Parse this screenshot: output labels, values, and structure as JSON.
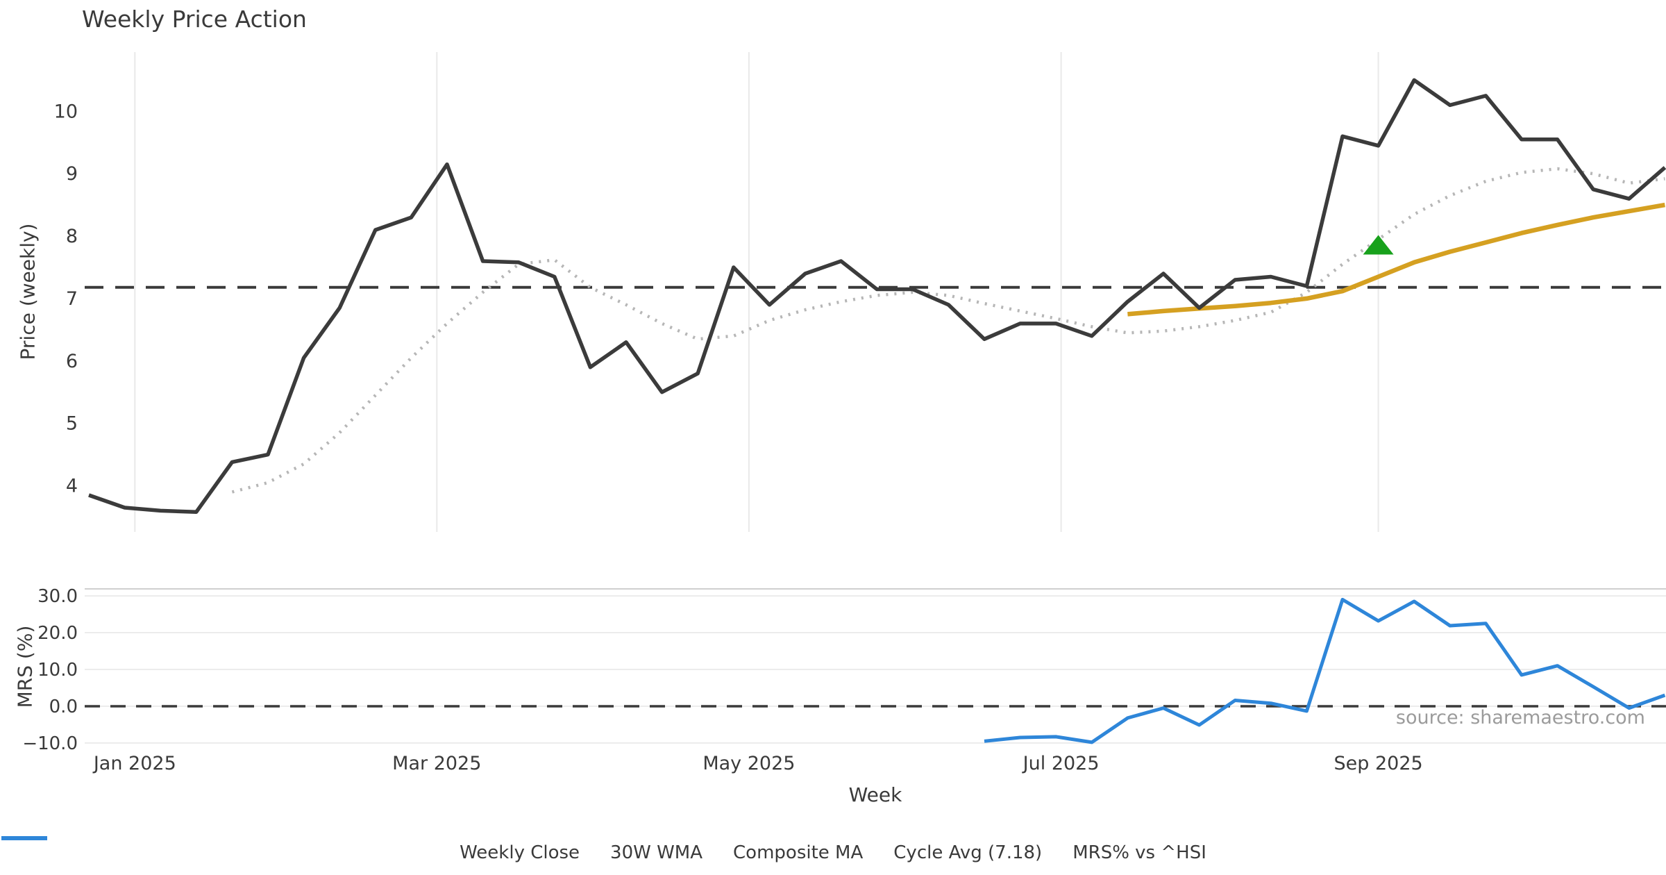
{
  "title": "Weekly Price Action",
  "source_note": "source: sharemaestro.com",
  "xlabel": "Week",
  "colors": {
    "weekly_close": "#3b3b3b",
    "wma_30w": "#d5a021",
    "composite_ma": "#b6b6b6",
    "cycle_avg": "#3a3a3a",
    "mrs": "#2e86d9",
    "signal_marker": "#18a11c",
    "grid": "#e9e9e9",
    "text": "#3a3a3a",
    "source_text": "#9b9b9b"
  },
  "legend": {
    "items": [
      {
        "label": "Weekly Close",
        "color": "#3b3b3b",
        "style": "solid"
      },
      {
        "label": "30W WMA",
        "color": "#d5a021",
        "style": "solid"
      },
      {
        "label": "Composite MA",
        "color": "#b6b6b6",
        "style": "dotted"
      },
      {
        "label": "Cycle Avg (7.18)",
        "color": "#3a3a3a",
        "style": "dashed"
      },
      {
        "label": "MRS% vs ^HSI",
        "color": "#2e86d9",
        "style": "solid"
      }
    ]
  },
  "chart_data": [
    {
      "type": "line",
      "panel": "price",
      "title": "Weekly Price Action",
      "ylabel": "Price (weekly)",
      "yticks": [
        4,
        5,
        6,
        7,
        8,
        9,
        10
      ],
      "ytick_labels": [
        "4",
        "5",
        "6",
        "7",
        "8",
        "9",
        "10"
      ],
      "ylim": [
        3.26,
        10.95
      ],
      "grid": {
        "vertical": true,
        "horizontal": false
      },
      "x_origin_date": "2024-12-23",
      "categories": [
        "2024-12-23",
        "2024-12-30",
        "2025-01-06",
        "2025-01-13",
        "2025-01-20",
        "2025-01-27",
        "2025-02-03",
        "2025-02-10",
        "2025-02-17",
        "2025-02-24",
        "2025-03-03",
        "2025-03-10",
        "2025-03-17",
        "2025-03-24",
        "2025-03-31",
        "2025-04-07",
        "2025-04-14",
        "2025-04-21",
        "2025-04-28",
        "2025-05-05",
        "2025-05-12",
        "2025-05-19",
        "2025-05-26",
        "2025-06-02",
        "2025-06-09",
        "2025-06-16",
        "2025-06-23",
        "2025-06-30",
        "2025-07-07",
        "2025-07-14",
        "2025-07-21",
        "2025-07-28",
        "2025-08-04",
        "2025-08-11",
        "2025-08-18",
        "2025-08-25",
        "2025-09-01",
        "2025-09-08",
        "2025-09-15",
        "2025-09-22",
        "2025-09-29",
        "2025-10-06",
        "2025-10-13",
        "2025-10-20",
        "2025-10-27"
      ],
      "xticks": [
        {
          "label": "Jan 2025",
          "date": "2025-01-01"
        },
        {
          "label": "Mar 2025",
          "date": "2025-03-01"
        },
        {
          "label": "May 2025",
          "date": "2025-05-01"
        },
        {
          "label": "Jul 2025",
          "date": "2025-07-01"
        },
        {
          "label": "Sep 2025",
          "date": "2025-09-01"
        }
      ],
      "series": [
        {
          "name": "Weekly Close",
          "color": "#3b3b3b",
          "style": "solid",
          "width": 5.5,
          "start_index": 0,
          "values": [
            3.85,
            3.65,
            3.6,
            3.58,
            4.38,
            4.5,
            6.05,
            6.85,
            8.1,
            8.3,
            9.15,
            7.6,
            7.58,
            7.35,
            5.9,
            6.3,
            5.5,
            5.8,
            7.5,
            6.9,
            7.4,
            7.6,
            7.15,
            7.15,
            6.9,
            6.35,
            6.6,
            6.6,
            6.4,
            6.95,
            7.4,
            6.85,
            7.3,
            7.35,
            7.2,
            9.6,
            9.45,
            10.5,
            10.1,
            10.25,
            9.55,
            9.55,
            8.75,
            8.6,
            9.1
          ]
        },
        {
          "name": "30W WMA",
          "color": "#d5a021",
          "style": "solid",
          "width": 6.5,
          "start_index": 29,
          "values": [
            6.75,
            6.8,
            6.84,
            6.88,
            6.93,
            7.0,
            7.12,
            7.35,
            7.58,
            7.75,
            7.9,
            8.05,
            8.18,
            8.3,
            8.4,
            8.5
          ]
        },
        {
          "name": "Composite MA",
          "color": "#b6b6b6",
          "style": "dotted",
          "width": 4.5,
          "start_index": 4,
          "values": [
            3.9,
            4.05,
            4.35,
            4.85,
            5.45,
            6.05,
            6.6,
            7.1,
            7.55,
            7.62,
            7.18,
            6.9,
            6.6,
            6.35,
            6.4,
            6.65,
            6.82,
            6.95,
            7.05,
            7.1,
            7.05,
            6.92,
            6.8,
            6.68,
            6.55,
            6.45,
            6.48,
            6.55,
            6.65,
            6.78,
            7.1,
            7.55,
            7.95,
            8.35,
            8.65,
            8.88,
            9.02,
            9.08,
            9.0,
            8.85,
            8.92
          ]
        },
        {
          "name": "Cycle Avg (7.18)",
          "color": "#3a3a3a",
          "style": "dashed",
          "width": 4,
          "constant": 7.18
        }
      ],
      "signal_marker": {
        "shape": "triangle-up",
        "color": "#18a11c",
        "date": "2025-09-01",
        "value": 7.85
      }
    },
    {
      "type": "line",
      "panel": "mrs",
      "ylabel": "MRS (%)",
      "yticks": [
        -10,
        0,
        10,
        20,
        30
      ],
      "ytick_labels": [
        "−10.0",
        "0.0",
        "10.0",
        "20.0",
        "30.0"
      ],
      "ylim": [
        -10.2,
        31.9
      ],
      "grid": {
        "vertical": false,
        "horizontal": true
      },
      "zero_line": {
        "style": "dashed",
        "color": "#3a3a3a",
        "value": 0
      },
      "series": [
        {
          "name": "MRS% vs ^HSI",
          "color": "#2e86d9",
          "style": "solid",
          "width": 5,
          "start_index": 25,
          "values": [
            -9.5,
            -8.5,
            -8.3,
            -9.8,
            -3.2,
            -0.5,
            -5.1,
            1.6,
            0.8,
            -1.3,
            29.0,
            23.2,
            28.5,
            21.9,
            22.5,
            8.5,
            11.0,
            5.3,
            -0.5,
            3.0
          ]
        }
      ]
    }
  ]
}
